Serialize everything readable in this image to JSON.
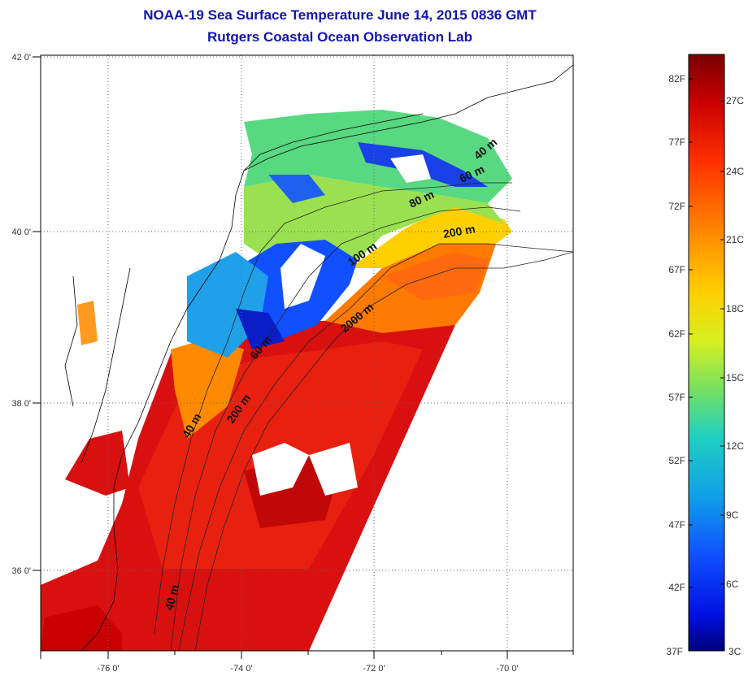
{
  "title": {
    "line1": "NOAA-19 Sea Surface Temperature June 14, 2015 0836 GMT",
    "line2": "Rutgers Coastal Ocean Observation Lab"
  },
  "map": {
    "lon_labels": [
      "-76 0'",
      "-74 0'",
      "-72 0'",
      "-70 0'"
    ],
    "lat_labels": [
      "42 0'",
      "40 0'",
      "38 0'",
      "36 0'"
    ],
    "contour_labels": [
      "40 m",
      "60 m",
      "80 m",
      "100 m",
      "200 m",
      "2000 m",
      "60 m",
      "200 m",
      "40 m",
      "40 m"
    ]
  },
  "colorbar": {
    "f_labels": [
      "82F",
      "77F",
      "72F",
      "67F",
      "62F",
      "57F",
      "52F",
      "47F",
      "42F",
      "37F"
    ],
    "c_labels": [
      "27C",
      "24C",
      "21C",
      "18C",
      "15C",
      "12C",
      "9C",
      "6C",
      "3C"
    ],
    "colors": [
      "#7a0000",
      "#c80000",
      "#ff3000",
      "#ff8a00",
      "#ffd000",
      "#d8f020",
      "#78e060",
      "#20d0c0",
      "#10a0e8",
      "#1050ff",
      "#0010e0",
      "#00007a"
    ]
  }
}
